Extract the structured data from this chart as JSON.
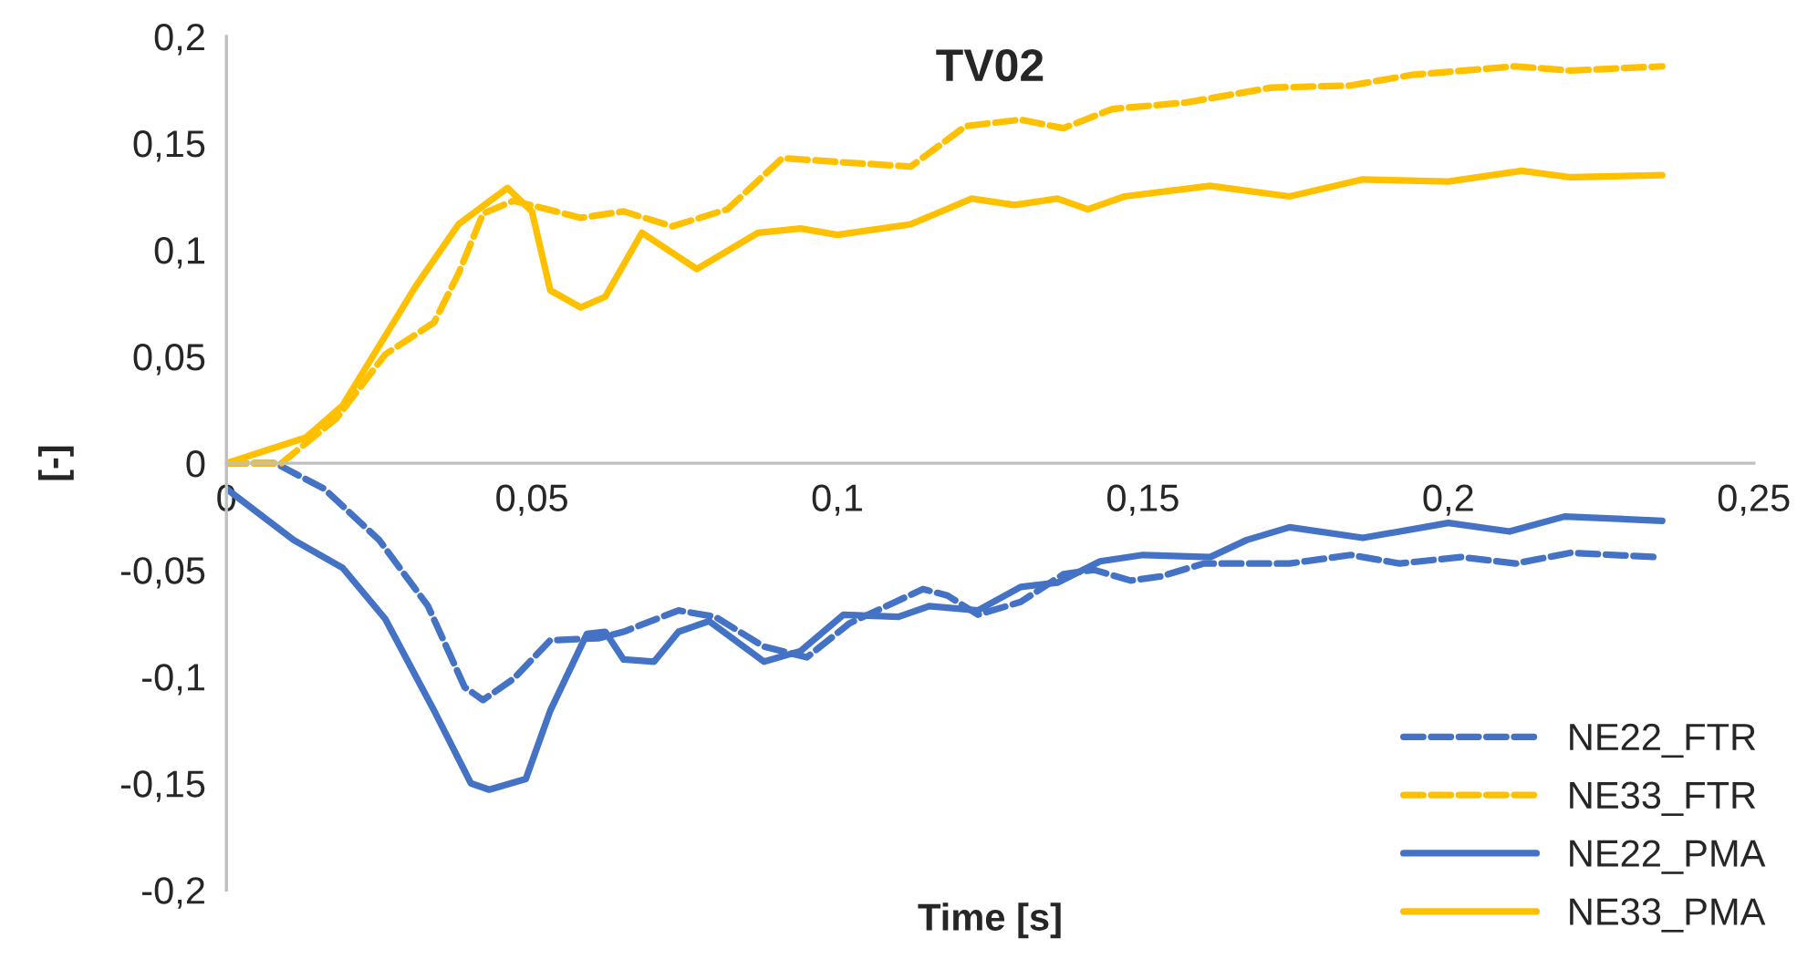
{
  "chart_data": {
    "type": "line",
    "title": "TV02",
    "xlabel": "Time [s]",
    "ylabel": "[-]",
    "xlim": [
      0,
      0.25
    ],
    "ylim": [
      -0.2,
      0.2
    ],
    "xticks": [
      0,
      {
        "value": 0.05,
        "label": "0,05"
      },
      {
        "value": 0.1,
        "label": "0,1"
      },
      {
        "value": 0.15,
        "label": "0,15"
      },
      {
        "value": 0.2,
        "label": "0,2"
      },
      {
        "value": 0.25,
        "label": "0,25"
      }
    ],
    "yticks": [
      {
        "value": -0.2,
        "label": "-0,2"
      },
      {
        "value": -0.15,
        "label": "-0,15"
      },
      {
        "value": -0.1,
        "label": "-0,1"
      },
      {
        "value": -0.05,
        "label": "-0,05"
      },
      0,
      {
        "value": 0.05,
        "label": "0,05"
      },
      {
        "value": 0.1,
        "label": "0,1"
      },
      {
        "value": 0.15,
        "label": "0,15"
      },
      {
        "value": 0.2,
        "label": "0,2"
      }
    ],
    "grid": false,
    "legend": "bottom right",
    "marker": "none",
    "series": [
      {
        "name": "NE22_FTR",
        "color": "#4472c4",
        "line_style": "dashed",
        "x": [
          0,
          0.008,
          0.016,
          0.025,
          0.033,
          0.039,
          0.042,
          0.047,
          0.053,
          0.061,
          0.065,
          0.074,
          0.08,
          0.088,
          0.095,
          0.102,
          0.114,
          0.118,
          0.123,
          0.13,
          0.137,
          0.142,
          0.148,
          0.153,
          0.16,
          0.174,
          0.184,
          0.192,
          0.202,
          0.211,
          0.22,
          0.234
        ],
        "values": [
          0,
          0,
          -0.012,
          -0.036,
          -0.067,
          -0.105,
          -0.111,
          -0.101,
          -0.083,
          -0.082,
          -0.079,
          -0.069,
          -0.072,
          -0.086,
          -0.091,
          -0.075,
          -0.059,
          -0.062,
          -0.071,
          -0.065,
          -0.052,
          -0.05,
          -0.055,
          -0.053,
          -0.047,
          -0.047,
          -0.043,
          -0.047,
          -0.044,
          -0.047,
          -0.042,
          -0.044
        ]
      },
      {
        "name": "NE33_FTR",
        "color": "#ffc000",
        "line_style": "dashed",
        "x": [
          0,
          0.009,
          0.018,
          0.026,
          0.034,
          0.038,
          0.042,
          0.047,
          0.058,
          0.065,
          0.073,
          0.082,
          0.091,
          0.101,
          0.112,
          0.121,
          0.13,
          0.137,
          0.145,
          0.157,
          0.171,
          0.184,
          0.194,
          0.211,
          0.22,
          0.235
        ],
        "values": [
          0,
          0,
          0.021,
          0.051,
          0.066,
          0.089,
          0.117,
          0.123,
          0.115,
          0.118,
          0.111,
          0.119,
          0.143,
          0.141,
          0.139,
          0.158,
          0.161,
          0.157,
          0.166,
          0.169,
          0.176,
          0.177,
          0.182,
          0.186,
          0.184,
          0.186
        ]
      },
      {
        "name": "NE22_PMA",
        "color": "#4472c4",
        "line_style": "solid",
        "x": [
          0,
          0.011,
          0.019,
          0.026,
          0.034,
          0.04,
          0.043,
          0.049,
          0.053,
          0.059,
          0.062,
          0.065,
          0.07,
          0.074,
          0.079,
          0.088,
          0.094,
          0.101,
          0.11,
          0.115,
          0.123,
          0.13,
          0.136,
          0.143,
          0.15,
          0.161,
          0.167,
          0.174,
          0.186,
          0.2,
          0.21,
          0.219,
          0.235
        ],
        "values": [
          -0.012,
          -0.036,
          -0.049,
          -0.073,
          -0.116,
          -0.15,
          -0.153,
          -0.148,
          -0.116,
          -0.08,
          -0.079,
          -0.092,
          -0.093,
          -0.079,
          -0.074,
          -0.093,
          -0.088,
          -0.071,
          -0.072,
          -0.067,
          -0.069,
          -0.058,
          -0.056,
          -0.046,
          -0.043,
          -0.044,
          -0.036,
          -0.03,
          -0.035,
          -0.028,
          -0.032,
          -0.025,
          -0.027
        ]
      },
      {
        "name": "NE33_PMA",
        "color": "#ffc000",
        "line_style": "solid",
        "x": [
          0,
          0.013,
          0.019,
          0.031,
          0.038,
          0.046,
          0.05,
          0.053,
          0.058,
          0.062,
          0.068,
          0.077,
          0.087,
          0.094,
          0.1,
          0.112,
          0.122,
          0.129,
          0.136,
          0.141,
          0.147,
          0.161,
          0.174,
          0.186,
          0.2,
          0.212,
          0.22,
          0.235
        ],
        "values": [
          0,
          0.012,
          0.027,
          0.083,
          0.112,
          0.129,
          0.118,
          0.081,
          0.073,
          0.078,
          0.108,
          0.091,
          0.108,
          0.11,
          0.107,
          0.112,
          0.124,
          0.121,
          0.124,
          0.119,
          0.125,
          0.13,
          0.125,
          0.133,
          0.132,
          0.137,
          0.134,
          0.135
        ]
      }
    ]
  }
}
